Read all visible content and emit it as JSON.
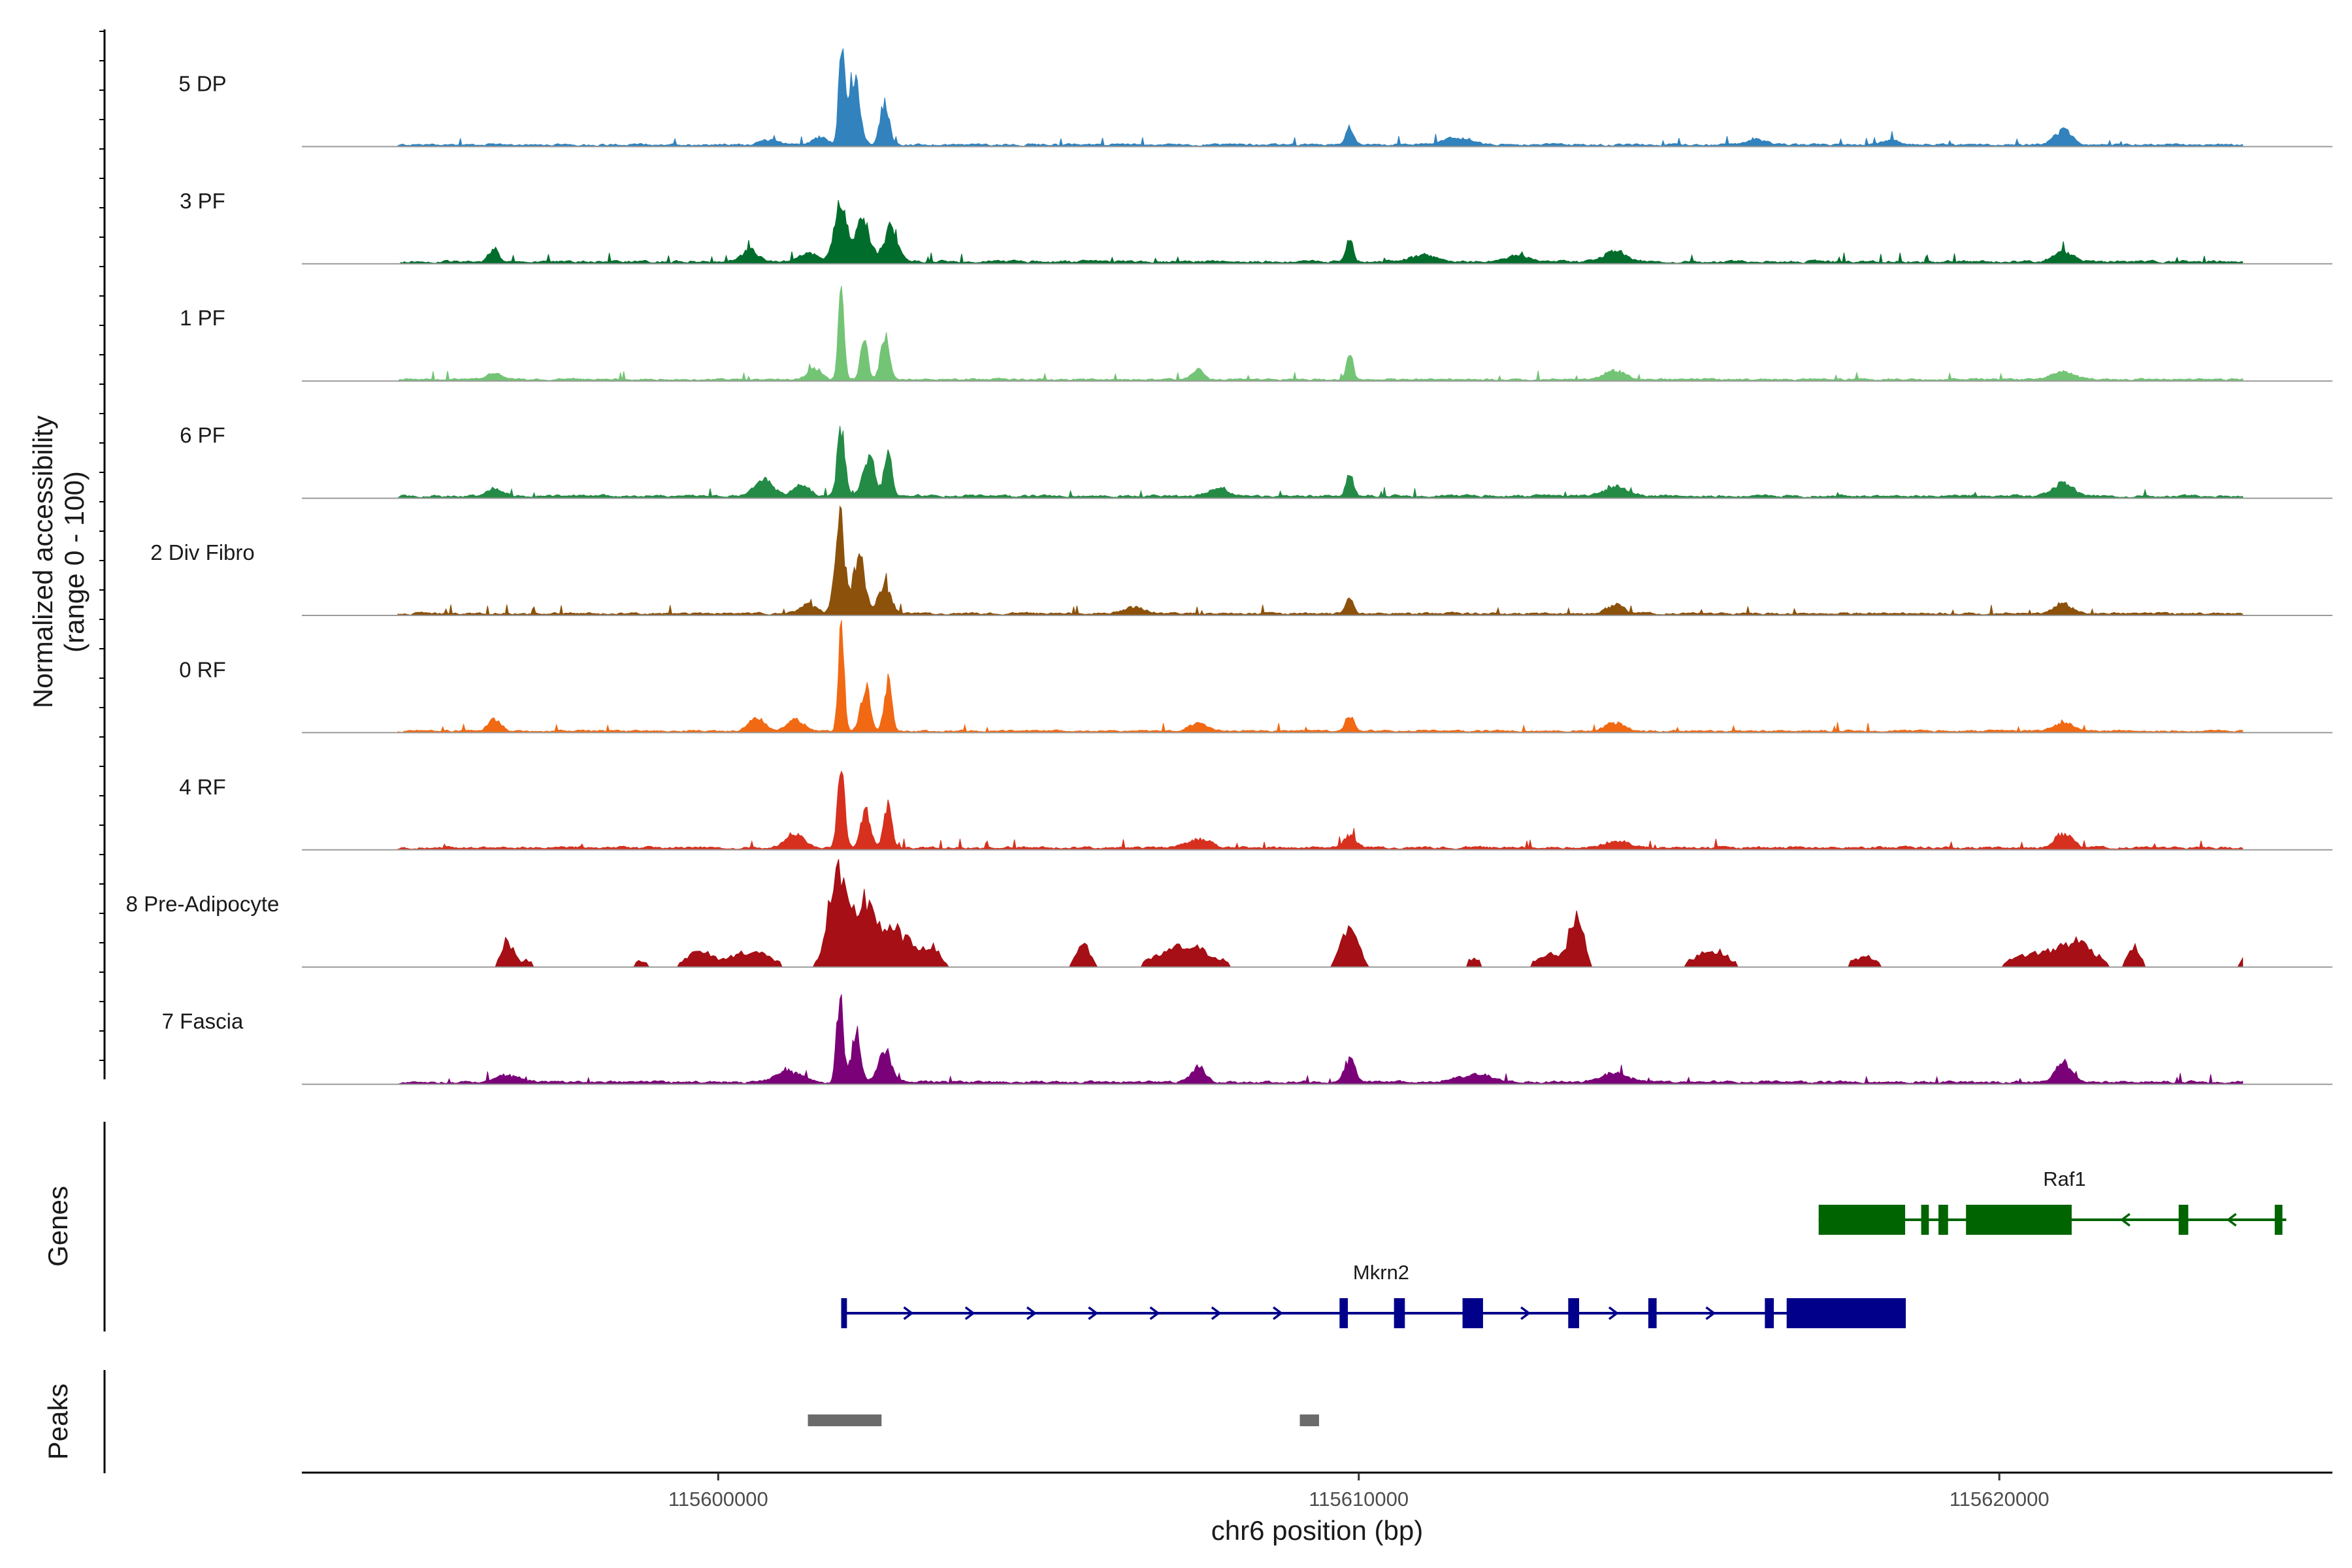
{
  "chart_data": {
    "type": "area",
    "title": "",
    "ylabel": [
      "Normalized accessibility",
      "(range 0 - 100)"
    ],
    "xlabel": "chr6 position (bp)",
    "xlim": [
      115593500,
      115625200
    ],
    "ylim": [
      0,
      100
    ],
    "x_ticks": [
      {
        "value": 115600000,
        "label": "115600000"
      },
      {
        "value": 115610000,
        "label": "115610000"
      },
      {
        "value": 115620000,
        "label": "115620000"
      }
    ],
    "series": [
      {
        "name": "5 DP",
        "color": "#3182BD",
        "bg": 3.5,
        "blocky": false,
        "peaks": [
          [
            115601930,
            93,
            45
          ],
          [
            115602120,
            62,
            85
          ],
          [
            115602600,
            38,
            70
          ],
          [
            115601600,
            7,
            110
          ],
          [
            115600800,
            4,
            150
          ],
          [
            115609860,
            15,
            55
          ],
          [
            115621000,
            13,
            130
          ],
          [
            115611550,
            6,
            200
          ],
          [
            115616200,
            5,
            140
          ],
          [
            115618300,
            4,
            120
          ]
        ]
      },
      {
        "name": "3 PF",
        "color": "#006D2C",
        "bg": 4,
        "blocky": false,
        "peaks": [
          [
            115601900,
            52,
            90
          ],
          [
            115602250,
            38,
            110
          ],
          [
            115602700,
            30,
            110
          ],
          [
            115601400,
            8,
            140
          ],
          [
            115600500,
            11,
            130
          ],
          [
            115609860,
            20,
            55
          ],
          [
            115596500,
            12,
            70
          ],
          [
            115614000,
            10,
            160
          ],
          [
            115621000,
            9,
            150
          ],
          [
            115611000,
            6,
            200
          ],
          [
            115612500,
            5,
            180
          ]
        ]
      },
      {
        "name": "1 PF",
        "color": "#74C476",
        "bg": 3,
        "blocky": false,
        "peaks": [
          [
            115601920,
            88,
            45
          ],
          [
            115602280,
            35,
            55
          ],
          [
            115602600,
            38,
            65
          ],
          [
            115601500,
            9,
            110
          ],
          [
            115609860,
            23,
            50
          ],
          [
            115607500,
            9,
            90
          ],
          [
            115614000,
            8,
            150
          ],
          [
            115621000,
            7,
            170
          ],
          [
            115596500,
            6,
            120
          ]
        ]
      },
      {
        "name": "6 PF",
        "color": "#238B45",
        "bg": 4,
        "blocky": false,
        "peaks": [
          [
            115601920,
            60,
            60
          ],
          [
            115602350,
            35,
            90
          ],
          [
            115602650,
            38,
            60
          ],
          [
            115600700,
            15,
            150
          ],
          [
            115601300,
            10,
            120
          ],
          [
            115609860,
            22,
            55
          ],
          [
            115621000,
            12,
            150
          ],
          [
            115614000,
            9,
            180
          ],
          [
            115607800,
            7,
            150
          ],
          [
            115596500,
            7,
            120
          ]
        ]
      },
      {
        "name": "2 Div Fibro",
        "color": "#8C510A",
        "bg": 3.5,
        "blocky": false,
        "peaks": [
          [
            115601900,
            82,
            75
          ],
          [
            115602200,
            50,
            90
          ],
          [
            115602600,
            25,
            100
          ],
          [
            115601400,
            9,
            120
          ],
          [
            115609860,
            14,
            55
          ],
          [
            115614000,
            8,
            130
          ],
          [
            115621000,
            9,
            130
          ],
          [
            115606500,
            6,
            180
          ]
        ]
      },
      {
        "name": "0 RF",
        "color": "#F16913",
        "bg": 3,
        "blocky": false,
        "peaks": [
          [
            115601920,
            88,
            45
          ],
          [
            115602300,
            40,
            70
          ],
          [
            115602650,
            42,
            60
          ],
          [
            115601200,
            10,
            130
          ],
          [
            115600600,
            12,
            120
          ],
          [
            115609860,
            14,
            60
          ],
          [
            115621000,
            8,
            150
          ],
          [
            115614000,
            7,
            150
          ],
          [
            115596500,
            10,
            100
          ],
          [
            115607500,
            8,
            130
          ]
        ]
      },
      {
        "name": "4 RF",
        "color": "#D7301F",
        "bg": 4,
        "blocky": false,
        "peaks": [
          [
            115601920,
            68,
            55
          ],
          [
            115602300,
            35,
            70
          ],
          [
            115602650,
            40,
            60
          ],
          [
            115601200,
            12,
            150
          ],
          [
            115609860,
            12,
            90
          ],
          [
            115621000,
            13,
            130
          ],
          [
            115607500,
            7,
            200
          ],
          [
            115614000,
            6,
            200
          ]
        ]
      },
      {
        "name": "8 Pre-Adipocyte",
        "color": "#A50F15",
        "bg": 0,
        "blocky": true,
        "peaks": [
          [
            115601850,
            75,
            140
          ],
          [
            115602300,
            58,
            180
          ],
          [
            115602800,
            30,
            200
          ],
          [
            115609860,
            35,
            130
          ],
          [
            115613400,
            42,
            110
          ],
          [
            115603300,
            18,
            150
          ],
          [
            115596700,
            25,
            90
          ],
          [
            115613000,
            12,
            200
          ],
          [
            115615500,
            15,
            250
          ],
          [
            115621200,
            22,
            280
          ],
          [
            115600500,
            14,
            300
          ],
          [
            115607300,
            18,
            400
          ],
          [
            115620500,
            11,
            300
          ],
          [
            115622100,
            18,
            90
          ],
          [
            115605700,
            22,
            100
          ],
          [
            115599700,
            13,
            200
          ],
          [
            115617900,
            9,
            200
          ],
          [
            115611800,
            8,
            100
          ],
          [
            115623900,
            8,
            150
          ],
          [
            115598800,
            6,
            100
          ],
          [
            115597000,
            6,
            100
          ]
        ]
      },
      {
        "name": "7 Fascia",
        "color": "#7A0177",
        "bg": 4,
        "blocky": false,
        "peaks": [
          [
            115601900,
            75,
            50
          ],
          [
            115602150,
            45,
            70
          ],
          [
            115602600,
            30,
            100
          ],
          [
            115601100,
            10,
            180
          ],
          [
            115609860,
            20,
            80
          ],
          [
            115607500,
            13,
            110
          ],
          [
            115621000,
            18,
            120
          ],
          [
            115614000,
            8,
            200
          ],
          [
            115611800,
            7,
            250
          ],
          [
            115596700,
            6,
            200
          ]
        ]
      }
    ],
    "genes": [
      {
        "name": "Mkrn2",
        "strand": "+",
        "color": "#00008B",
        "start": 115601920,
        "end": 115618540,
        "exons": [
          [
            115601920,
            115602010
          ],
          [
            115609700,
            115609830
          ],
          [
            115610550,
            115610720
          ],
          [
            115611620,
            115611940
          ],
          [
            115613270,
            115613440
          ],
          [
            115614520,
            115614650
          ],
          [
            115616340,
            115616480
          ],
          [
            115616680,
            115618540
          ]
        ]
      },
      {
        "name": "Raf1",
        "strand": "-",
        "color": "#006400",
        "start": 115617180,
        "end": 115624480,
        "exons": [
          [
            115617180,
            115618530
          ],
          [
            115618780,
            115618900
          ],
          [
            115619050,
            115619200
          ],
          [
            115619480,
            115621130
          ],
          [
            115622800,
            115622950
          ],
          [
            115624300,
            115624420
          ]
        ]
      }
    ],
    "peaks": [
      {
        "start": 115601400,
        "end": 115602550
      },
      {
        "start": 115609080,
        "end": 115609380
      }
    ],
    "panel_labels": {
      "genes": "Genes",
      "peaks": "Peaks"
    }
  }
}
